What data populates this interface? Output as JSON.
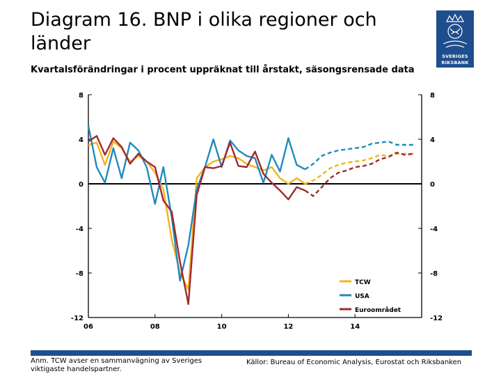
{
  "header": {
    "title": "Diagram 16. BNP i olika regioner och länder",
    "subtitle": "Kvartalsförändringar i procent uppräknat till årstakt, säsongsrensade data"
  },
  "logo": {
    "line1": "SVERIGES",
    "line2": "RIKSBANK"
  },
  "footer": {
    "note": "Anm. TCW avser en sammanvägning av Sveriges viktigaste handelspartner.",
    "sources": "Källor: Bureau of Economic Analysis, Eurostat och Riksbanken"
  },
  "chart_data": {
    "type": "line",
    "title": "",
    "xlabel": "",
    "ylabel": "",
    "ylim": [
      -12,
      8
    ],
    "yticks": [
      8,
      4,
      0,
      -4,
      -8,
      -12
    ],
    "ytick_labels": [
      "8",
      "4",
      "0",
      "-4",
      "-8",
      "-12"
    ],
    "x_range": [
      2006.0,
      2016.0
    ],
    "xticks": [
      2006,
      2008,
      2010,
      2012,
      2014
    ],
    "xtick_labels": [
      "06",
      "08",
      "10",
      "12",
      "14"
    ],
    "legend_position": "bottom-right",
    "forecast_start": 2012.5,
    "series": [
      {
        "name": "TCW",
        "color": "#f2b51b",
        "x": [
          2006.0,
          2006.25,
          2006.5,
          2006.75,
          2007.0,
          2007.25,
          2007.5,
          2007.75,
          2008.0,
          2008.25,
          2008.5,
          2008.75,
          2009.0,
          2009.25,
          2009.5,
          2009.75,
          2010.0,
          2010.25,
          2010.5,
          2010.75,
          2011.0,
          2011.25,
          2011.5,
          2011.75,
          2012.0,
          2012.25,
          2012.5,
          2012.75,
          2013.0,
          2013.25,
          2013.5,
          2013.75,
          2014.0,
          2014.25,
          2014.5,
          2014.75,
          2015.0,
          2015.25,
          2015.5,
          2015.75
        ],
        "values": [
          3.5,
          3.7,
          1.7,
          3.8,
          3.2,
          2.0,
          2.5,
          2.0,
          1.0,
          -0.5,
          -5.0,
          -8.0,
          -9.5,
          0.5,
          1.5,
          2.0,
          2.2,
          2.5,
          2.3,
          1.8,
          1.5,
          1.2,
          1.5,
          0.5,
          0.0,
          0.5,
          0.0,
          0.3,
          0.8,
          1.4,
          1.7,
          1.9,
          2.0,
          2.1,
          2.3,
          2.6,
          2.5,
          2.7,
          2.7,
          2.7
        ]
      },
      {
        "name": "USA",
        "color": "#1f8bbf",
        "x": [
          2006.0,
          2006.25,
          2006.5,
          2006.75,
          2007.0,
          2007.25,
          2007.5,
          2007.75,
          2008.0,
          2008.25,
          2008.5,
          2008.75,
          2009.0,
          2009.25,
          2009.5,
          2009.75,
          2010.0,
          2010.25,
          2010.5,
          2010.75,
          2011.0,
          2011.25,
          2011.5,
          2011.75,
          2012.0,
          2012.25,
          2012.5,
          2012.75,
          2013.0,
          2013.25,
          2013.5,
          2013.75,
          2014.0,
          2014.25,
          2014.5,
          2014.75,
          2015.0,
          2015.25,
          2015.5,
          2015.75
        ],
        "values": [
          5.2,
          1.5,
          0.1,
          3.2,
          0.5,
          3.7,
          3.0,
          1.5,
          -1.8,
          1.5,
          -3.0,
          -8.7,
          -5.5,
          -0.5,
          1.5,
          4.0,
          1.5,
          3.9,
          3.0,
          2.5,
          2.3,
          0.1,
          2.6,
          1.1,
          4.1,
          1.7,
          1.3,
          1.8,
          2.5,
          2.8,
          3.0,
          3.1,
          3.2,
          3.3,
          3.6,
          3.7,
          3.8,
          3.5,
          3.5,
          3.5
        ]
      },
      {
        "name": "Euroområdet",
        "color": "#a0282f",
        "x": [
          2006.0,
          2006.25,
          2006.5,
          2006.75,
          2007.0,
          2007.25,
          2007.5,
          2007.75,
          2008.0,
          2008.25,
          2008.5,
          2008.75,
          2009.0,
          2009.25,
          2009.5,
          2009.75,
          2010.0,
          2010.25,
          2010.5,
          2010.75,
          2011.0,
          2011.25,
          2011.5,
          2011.75,
          2012.0,
          2012.25,
          2012.5,
          2012.75,
          2013.0,
          2013.25,
          2013.5,
          2013.75,
          2014.0,
          2014.25,
          2014.5,
          2014.75,
          2015.0,
          2015.25,
          2015.5,
          2015.75
        ],
        "values": [
          3.8,
          4.3,
          2.6,
          4.1,
          3.3,
          1.8,
          2.7,
          2.0,
          1.5,
          -1.5,
          -2.5,
          -7.0,
          -10.8,
          -1.0,
          1.5,
          1.4,
          1.6,
          3.7,
          1.6,
          1.5,
          2.9,
          0.9,
          0.1,
          -0.6,
          -1.4,
          -0.3,
          -0.6,
          -1.1,
          -0.3,
          0.5,
          1.0,
          1.2,
          1.5,
          1.6,
          1.8,
          2.2,
          2.4,
          2.8,
          2.6,
          2.7
        ]
      }
    ]
  }
}
